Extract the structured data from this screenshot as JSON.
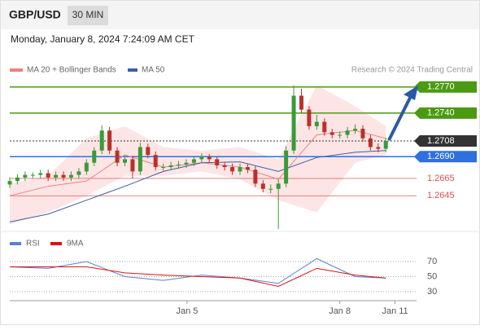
{
  "chart_data": {
    "type": "candlestick",
    "title": "GBP/USD",
    "timeframe": "30 MIN",
    "timestamp": "Monday, January 8, 2024 7:24:09 AM CET",
    "credit": "Research © 2024 Trading Central",
    "up_color": "#3a9a3a",
    "down_color": "#b8322a",
    "xlim": [
      0,
      53
    ],
    "xticks": [
      {
        "value": 23.1,
        "label": "Jan 5"
      },
      {
        "value": 43,
        "label": "Jan 8"
      },
      {
        "value": 50.2,
        "label": "Jan 11"
      }
    ],
    "ylim": [
      1.2606,
      1.2781
    ],
    "ohlc": [
      [
        1.2658,
        1.2666,
        1.2654,
        1.2662
      ],
      [
        1.2662,
        1.267,
        1.2658,
        1.2666
      ],
      [
        1.2666,
        1.2673,
        1.2662,
        1.2669
      ],
      [
        1.2669,
        1.2672,
        1.2665,
        1.2669
      ],
      [
        1.2669,
        1.2675,
        1.2665,
        1.2671
      ],
      [
        1.2671,
        1.2675,
        1.2662,
        1.2666
      ],
      [
        1.2666,
        1.2673,
        1.2662,
        1.2669
      ],
      [
        1.2669,
        1.2673,
        1.2662,
        1.2666
      ],
      [
        1.2666,
        1.2673,
        1.2662,
        1.2669
      ],
      [
        1.2669,
        1.2677,
        1.2665,
        1.2673
      ],
      [
        1.2673,
        1.2687,
        1.2669,
        1.2683
      ],
      [
        1.2683,
        1.2701,
        1.2679,
        1.2697
      ],
      [
        1.2697,
        1.2726,
        1.2693,
        1.272
      ],
      [
        1.272,
        1.2724,
        1.2693,
        1.2697
      ],
      [
        1.2697,
        1.2701,
        1.2679,
        1.2683
      ],
      [
        1.2683,
        1.2691,
        1.2679,
        1.2687
      ],
      [
        1.2687,
        1.2691,
        1.2665,
        1.2673
      ],
      [
        1.2673,
        1.2706,
        1.2669,
        1.2701
      ],
      [
        1.2701,
        1.2705,
        1.2688,
        1.2692
      ],
      [
        1.2692,
        1.2696,
        1.2674,
        1.2678
      ],
      [
        1.2678,
        1.2682,
        1.2674,
        1.2678
      ],
      [
        1.2678,
        1.2684,
        1.2675,
        1.268
      ],
      [
        1.268,
        1.2685,
        1.2676,
        1.2681
      ],
      [
        1.2681,
        1.2687,
        1.2677,
        1.2683
      ],
      [
        1.2683,
        1.2691,
        1.2679,
        1.2687
      ],
      [
        1.2687,
        1.2694,
        1.2683,
        1.269
      ],
      [
        1.269,
        1.2693,
        1.2683,
        1.2687
      ],
      [
        1.2687,
        1.269,
        1.2676,
        1.268
      ],
      [
        1.268,
        1.2684,
        1.2674,
        1.2678
      ],
      [
        1.2678,
        1.2682,
        1.2669,
        1.2673
      ],
      [
        1.2673,
        1.2682,
        1.2669,
        1.2678
      ],
      [
        1.2678,
        1.2682,
        1.2671,
        1.2675
      ],
      [
        1.2675,
        1.2679,
        1.2655,
        1.2659
      ],
      [
        1.2659,
        1.2663,
        1.2649,
        1.2653
      ],
      [
        1.2653,
        1.2658,
        1.2648,
        1.2653
      ],
      [
        1.2653,
        1.2664,
        1.2607,
        1.2659
      ],
      [
        1.2659,
        1.2702,
        1.2655,
        1.2697
      ],
      [
        1.2697,
        1.2772,
        1.2693,
        1.276
      ],
      [
        1.276,
        1.2768,
        1.274,
        1.2744
      ],
      [
        1.2744,
        1.2748,
        1.2721,
        1.2725
      ],
      [
        1.2725,
        1.2738,
        1.2721,
        1.273
      ],
      [
        1.273,
        1.2734,
        1.2714,
        1.2718
      ],
      [
        1.2718,
        1.2722,
        1.2711,
        1.2715
      ],
      [
        1.2715,
        1.2719,
        1.2711,
        1.2715
      ],
      [
        1.2715,
        1.2724,
        1.2711,
        1.272
      ],
      [
        1.272,
        1.2727,
        1.2716,
        1.2722
      ],
      [
        1.2722,
        1.2726,
        1.2707,
        1.2711
      ],
      [
        1.2711,
        1.2715,
        1.2697,
        1.2701
      ],
      [
        1.2701,
        1.2705,
        1.2695,
        1.2699
      ],
      [
        1.2699,
        1.2712,
        1.2695,
        1.2708
      ]
    ],
    "indicator_x": [
      0,
      5,
      10,
      15,
      20,
      25,
      30,
      35,
      40,
      45,
      49
    ],
    "bollinger": {
      "color": "#fcdcdc",
      "upper": [
        1.2659,
        1.2668,
        1.2711,
        1.2725,
        1.2701,
        1.2697,
        1.2701,
        1.2687,
        1.2772,
        1.2748,
        1.2725
      ],
      "lower": [
        1.2612,
        1.2626,
        1.2645,
        1.2668,
        1.2668,
        1.2673,
        1.2664,
        1.264,
        1.2626,
        1.2683,
        1.2692
      ]
    },
    "series": [
      {
        "name": "MA 20 + Bollinger Bands",
        "color": "#f08080",
        "values": [
          1.2645,
          1.2656,
          1.2662,
          1.2692,
          1.2678,
          1.2683,
          1.2678,
          1.2664,
          1.2715,
          1.272,
          1.2711
        ]
      },
      {
        "name": "MA 50",
        "color": "#3a5fa8",
        "values": [
          1.2615,
          1.2624,
          1.264,
          1.2656,
          1.2673,
          1.2683,
          1.2684,
          1.2673,
          1.2689,
          1.2695,
          1.2697
        ]
      }
    ],
    "levels": [
      {
        "value": 1.277,
        "label": "1.2770",
        "color": "#4a9a12",
        "boxed": true,
        "dotted": false
      },
      {
        "value": 1.274,
        "label": "1.2740",
        "color": "#4a9a12",
        "boxed": true,
        "dotted": false
      },
      {
        "value": 1.2708,
        "label": "1.2708",
        "color": "#333333",
        "boxed": true,
        "dotted": true
      },
      {
        "value": 1.269,
        "label": "1.2690",
        "color": "#2f6fe0",
        "boxed": true,
        "dotted": false
      },
      {
        "value": 1.2665,
        "label": "1.2665",
        "color": "#e05050",
        "boxed": false,
        "dotted": false
      },
      {
        "value": 1.2645,
        "label": "1.2645",
        "color": "#e05050",
        "boxed": false,
        "dotted": false
      }
    ],
    "rsi": {
      "ylim": [
        19,
        82
      ],
      "yticks": [
        70,
        50,
        30
      ],
      "series": [
        {
          "name": "RSI",
          "color": "#5b7fd6",
          "values": [
            63,
            61,
            70,
            50,
            45,
            52,
            48,
            41,
            74,
            50,
            48
          ]
        },
        {
          "name": "9MA",
          "color": "#e01010",
          "values": [
            63,
            63,
            63,
            55,
            52,
            50,
            48,
            37,
            61,
            52,
            48
          ]
        }
      ]
    }
  }
}
